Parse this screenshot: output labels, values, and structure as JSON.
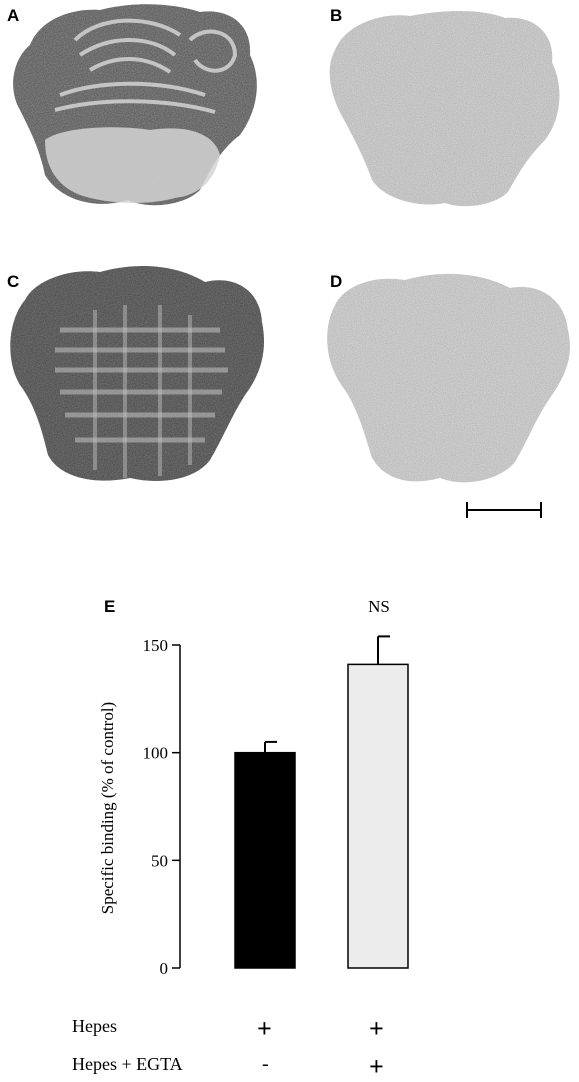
{
  "panels": {
    "a_label": "A",
    "b_label": "B",
    "c_label": "C",
    "d_label": "D",
    "e_label": "E"
  },
  "chart_data": {
    "type": "bar",
    "categories": [
      "Hepes",
      "Hepes + EGTA"
    ],
    "values": [
      100,
      141
    ],
    "errors": [
      5,
      13
    ],
    "ylabel": "Specific binding (% of control)",
    "ylim": [
      0,
      150
    ],
    "yticks": [
      0,
      50,
      100,
      150
    ],
    "annotation": "NS",
    "bar_colors": [
      "#000000",
      "#ececec"
    ]
  },
  "conditions": {
    "rows": [
      {
        "label": "Hepes",
        "signs": [
          "+",
          "+"
        ]
      },
      {
        "label": "Hepes + EGTA",
        "signs": [
          "-",
          "+"
        ]
      }
    ]
  }
}
